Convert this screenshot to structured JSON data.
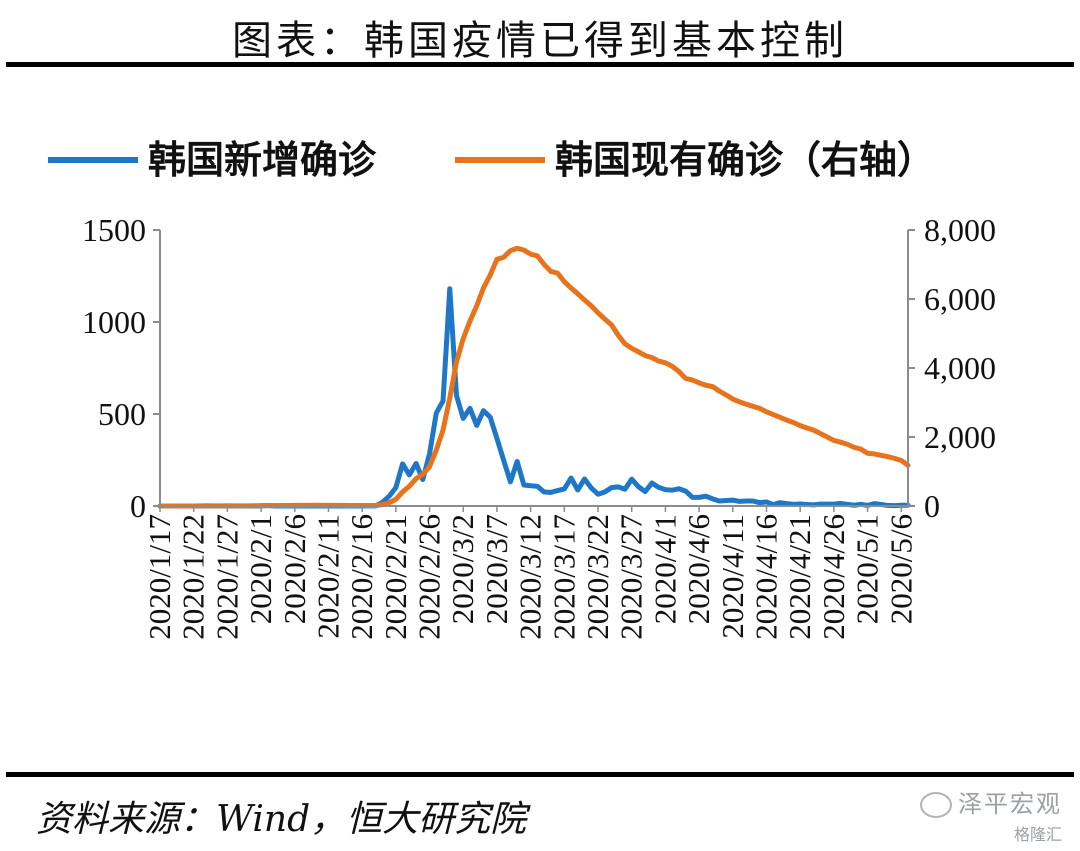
{
  "header": {
    "title": "图表：韩国疫情已得到基本控制"
  },
  "footer": {
    "source": "资料来源：Wind，恒大研究院",
    "watermark_line1": "泽平宏观",
    "watermark_line2": "格隆汇"
  },
  "chart_data": {
    "type": "line",
    "title": "",
    "xlabel": "",
    "ylabel": "",
    "ylabel_right": "",
    "x": [
      "2020/1/17",
      "2020/1/18",
      "2020/1/19",
      "2020/1/20",
      "2020/1/21",
      "2020/1/22",
      "2020/1/23",
      "2020/1/24",
      "2020/1/25",
      "2020/1/26",
      "2020/1/27",
      "2020/1/28",
      "2020/1/29",
      "2020/1/30",
      "2020/1/31",
      "2020/2/1",
      "2020/2/2",
      "2020/2/3",
      "2020/2/4",
      "2020/2/5",
      "2020/2/6",
      "2020/2/7",
      "2020/2/8",
      "2020/2/9",
      "2020/2/10",
      "2020/2/11",
      "2020/2/12",
      "2020/2/13",
      "2020/2/14",
      "2020/2/15",
      "2020/2/16",
      "2020/2/17",
      "2020/2/18",
      "2020/2/19",
      "2020/2/20",
      "2020/2/21",
      "2020/2/22",
      "2020/2/23",
      "2020/2/24",
      "2020/2/25",
      "2020/2/26",
      "2020/2/27",
      "2020/2/28",
      "2020/2/29",
      "2020/3/1",
      "2020/3/2",
      "2020/3/3",
      "2020/3/4",
      "2020/3/5",
      "2020/3/6",
      "2020/3/7",
      "2020/3/8",
      "2020/3/9",
      "2020/3/10",
      "2020/3/11",
      "2020/3/12",
      "2020/3/13",
      "2020/3/14",
      "2020/3/15",
      "2020/3/16",
      "2020/3/17",
      "2020/3/18",
      "2020/3/19",
      "2020/3/20",
      "2020/3/21",
      "2020/3/22",
      "2020/3/23",
      "2020/3/24",
      "2020/3/25",
      "2020/3/26",
      "2020/3/27",
      "2020/3/28",
      "2020/3/29",
      "2020/3/30",
      "2020/3/31",
      "2020/4/1",
      "2020/4/2",
      "2020/4/3",
      "2020/4/4",
      "2020/4/5",
      "2020/4/6",
      "2020/4/7",
      "2020/4/8",
      "2020/4/9",
      "2020/4/10",
      "2020/4/11",
      "2020/4/12",
      "2020/4/13",
      "2020/4/14",
      "2020/4/15",
      "2020/4/16",
      "2020/4/17",
      "2020/4/18",
      "2020/4/19",
      "2020/4/20",
      "2020/4/21",
      "2020/4/22",
      "2020/4/23",
      "2020/4/24",
      "2020/4/25",
      "2020/4/26",
      "2020/4/27",
      "2020/4/28",
      "2020/4/29",
      "2020/4/30",
      "2020/5/1",
      "2020/5/2",
      "2020/5/3",
      "2020/5/4",
      "2020/5/5",
      "2020/5/6",
      "2020/5/7"
    ],
    "x_tick_labels": [
      "2020/1/17",
      "2020/1/22",
      "2020/1/27",
      "2020/2/1",
      "2020/2/6",
      "2020/2/11",
      "2020/2/16",
      "2020/2/21",
      "2020/2/26",
      "2020/3/2",
      "2020/3/7",
      "2020/3/12",
      "2020/3/17",
      "2020/3/22",
      "2020/3/27",
      "2020/4/1",
      "2020/4/6",
      "2020/4/11",
      "2020/4/16",
      "2020/4/21",
      "2020/4/26",
      "2020/5/1",
      "2020/5/6"
    ],
    "y_left": {
      "ticks": [
        "0",
        "500",
        "1000",
        "1500"
      ],
      "range": [
        0,
        1500
      ]
    },
    "y_right": {
      "ticks": [
        "0",
        "2,000",
        "4,000",
        "6,000",
        "8,000"
      ],
      "range": [
        0,
        8000
      ]
    },
    "grid": false,
    "legend": "top",
    "series": [
      {
        "name": "韩国新增确诊",
        "axis": "left",
        "color": "#1f77c8",
        "values": [
          0,
          0,
          0,
          0,
          0,
          0,
          0,
          1,
          0,
          0,
          1,
          0,
          0,
          0,
          0,
          1,
          3,
          0,
          1,
          0,
          0,
          1,
          0,
          0,
          0,
          1,
          0,
          0,
          0,
          0,
          0,
          1,
          1,
          20,
          53,
          100,
          229,
          169,
          231,
          144,
          284,
          505,
          571,
          1181,
          600,
          476,
          531,
          438,
          518,
          483,
          367,
          248,
          131,
          242,
          114,
          110,
          107,
          76,
          74,
          84,
          93,
          152,
          87,
          147,
          98,
          64,
          76,
          100,
          104,
          91,
          146,
          105,
          78,
          125,
          101,
          89,
          86,
          94,
          81,
          47,
          47,
          53,
          39,
          27,
          30,
          32,
          25,
          27,
          27,
          18,
          22,
          8,
          18,
          13,
          9,
          11,
          8,
          6,
          10,
          10,
          10,
          14,
          9,
          4,
          9,
          3,
          13,
          8,
          3,
          2,
          4,
          4
        ]
      },
      {
        "name": "韩国现有确诊（右轴）",
        "axis": "right",
        "color": "#e8731d",
        "values": [
          0,
          0,
          0,
          0,
          1,
          1,
          2,
          2,
          2,
          3,
          3,
          3,
          3,
          4,
          7,
          10,
          12,
          12,
          13,
          13,
          17,
          18,
          18,
          20,
          18,
          18,
          18,
          18,
          16,
          13,
          13,
          13,
          15,
          38,
          91,
          193,
          407,
          573,
          793,
          915,
          1142,
          1621,
          2199,
          3129,
          4177,
          4855,
          5361,
          5800,
          6320,
          6690,
          7150,
          7210,
          7400,
          7470,
          7420,
          7300,
          7250,
          7000,
          6800,
          6750,
          6500,
          6320,
          6150,
          5970,
          5800,
          5600,
          5420,
          5250,
          4950,
          4700,
          4570,
          4470,
          4360,
          4300,
          4200,
          4150,
          4050,
          3900,
          3700,
          3650,
          3570,
          3500,
          3460,
          3330,
          3220,
          3100,
          3020,
          2950,
          2890,
          2830,
          2730,
          2650,
          2570,
          2490,
          2420,
          2330,
          2260,
          2200,
          2100,
          2000,
          1900,
          1850,
          1790,
          1700,
          1650,
          1530,
          1510,
          1470,
          1430,
          1380,
          1320,
          1180
        ]
      }
    ]
  }
}
